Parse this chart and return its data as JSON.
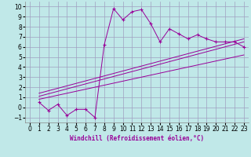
{
  "xlabel": "Windchill (Refroidissement éolien,°C)",
  "background_color": "#c0e8e8",
  "line_color": "#990099",
  "grid_color": "#a0a0c0",
  "xlim": [
    -0.5,
    23.5
  ],
  "ylim": [
    -1.5,
    10.5
  ],
  "xticks": [
    0,
    1,
    2,
    3,
    4,
    5,
    6,
    7,
    8,
    9,
    10,
    11,
    12,
    13,
    14,
    15,
    16,
    17,
    18,
    19,
    20,
    21,
    22,
    23
  ],
  "yticks": [
    -1,
    0,
    1,
    2,
    3,
    4,
    5,
    6,
    7,
    8,
    9,
    10
  ],
  "main_x": [
    1,
    2,
    3,
    4,
    5,
    6,
    7,
    8,
    9,
    10,
    11,
    12,
    13,
    14,
    15,
    16,
    17,
    18,
    19,
    20,
    21,
    22,
    23
  ],
  "main_y": [
    0.5,
    -0.3,
    0.3,
    -0.8,
    -0.2,
    -0.2,
    -1.0,
    6.2,
    9.8,
    8.7,
    9.5,
    9.7,
    8.3,
    6.5,
    7.8,
    7.3,
    6.8,
    7.2,
    6.8,
    6.5,
    6.5,
    6.5,
    6.0
  ],
  "line2_x": [
    1,
    23
  ],
  "line2_y": [
    1.1,
    6.5
  ],
  "line3_x": [
    1,
    23
  ],
  "line3_y": [
    0.8,
    5.2
  ],
  "line4_x": [
    1,
    23
  ],
  "line4_y": [
    1.4,
    6.8
  ],
  "xlabel_fontsize": 5.5,
  "tick_fontsize": 5.5
}
